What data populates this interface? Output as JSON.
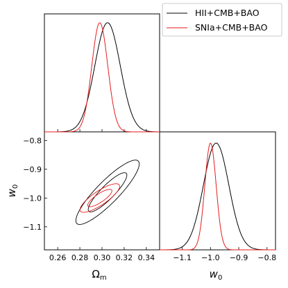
{
  "chart_data": {
    "type": "corner",
    "legend": {
      "location": "upper right",
      "entries": [
        {
          "label": "HII+CMB+BAO",
          "color": "#000000"
        },
        {
          "label": "SNIa+CMB+BAO",
          "color": "#e41a1c"
        }
      ]
    },
    "parameters": [
      {
        "name": "Omega_m",
        "label_main": "Ω",
        "label_sub": "m",
        "range": [
          0.248,
          0.352
        ],
        "ticks": [
          0.26,
          0.28,
          0.3,
          0.32,
          0.34
        ],
        "tick_labels": [
          "0.26",
          "0.28",
          "0.30",
          "0.32",
          "0.34"
        ]
      },
      {
        "name": "w0",
        "label_main": "w",
        "label_sub": "0",
        "range": [
          -1.18,
          -0.77
        ],
        "ticks": [
          -1.1,
          -1.0,
          -0.9,
          -0.8
        ],
        "tick_labels": [
          "−1.1",
          "−1.0",
          "−0.9",
          "−0.8"
        ]
      }
    ],
    "series": [
      {
        "name": "HII+CMB+BAO",
        "color": "#000000",
        "mean": [
          0.305,
          -0.98
        ],
        "sigma": [
          0.0115,
          0.045
        ],
        "correlation": 0.88,
        "contour_levels": [
          "1σ",
          "2σ"
        ]
      },
      {
        "name": "SNIa+CMB+BAO",
        "color": "#e41a1c",
        "mean": [
          0.298,
          -1.0
        ],
        "sigma": [
          0.0072,
          0.02
        ],
        "correlation": 0.82,
        "contour_levels": [
          "1σ",
          "2σ"
        ]
      }
    ]
  }
}
